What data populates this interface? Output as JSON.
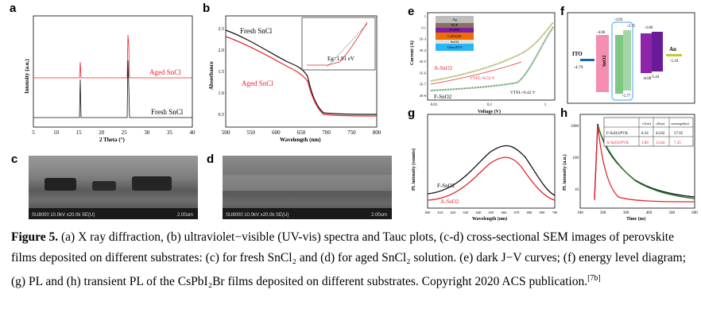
{
  "panels": {
    "a": {
      "letter": "a",
      "ylabel": "Intensity (a.u.)",
      "xlabel": "2 Theta (°)",
      "xticks": [
        "5",
        "10",
        "15",
        "20",
        "25",
        "30",
        "35",
        "40"
      ],
      "label_aged": "Aged SnCl",
      "label_fresh": "Fresh SnCl",
      "sub": "2"
    },
    "b": {
      "letter": "b",
      "ylabel": "Absorbance",
      "xlabel": "Wavelength (nm)",
      "xticks": [
        "500",
        "550",
        "600",
        "650",
        "700",
        "750",
        "800"
      ],
      "yticks": [
        "0.5",
        "1.0",
        "1.5",
        "2.0",
        "2.5"
      ],
      "label_fresh": "Fresh SnCl",
      "label_aged": "Aged SnCl",
      "sub": "2",
      "inset_eg": "Eg=1.91 eV",
      "inset_xticks": [
        "1.6",
        "1.8",
        "2.0",
        "2.2",
        "2.4",
        "2.6"
      ]
    },
    "c": {
      "letter": "c",
      "sem_text": "SU8000 10.0kV x20.0k SE(U)",
      "sem_scale": "2.00um"
    },
    "d": {
      "letter": "d",
      "sem_text": "SU8000 10.0kV x20.0k SE(U)",
      "sem_scale": "2.00um"
    },
    "e": {
      "letter": "e",
      "ylabel": "Current (A)",
      "xlabel": "Voltage (V)",
      "xticks": [
        "0.01",
        "0.1",
        "1"
      ],
      "yticks": [
        "1",
        "0.1",
        "1E-3",
        "1E-4",
        "1E-5",
        "1E-6",
        "1E-7",
        "1E-8"
      ],
      "stack": [
        "Ag",
        "BCP",
        "PCBM",
        "CsPbI2Br",
        "SnO2",
        "Glass/ITO"
      ],
      "label_a": "A-SnO2",
      "label_f": "F-SnO2",
      "vtfl_a": "VTFL=0.53 V",
      "vtfl_f": "VTFL=0.42 V"
    },
    "f": {
      "letter": "f",
      "ito": "ITO",
      "ito_val": "-4.70",
      "sno2": "SnO2",
      "fsno2": "F-SnO2",
      "asno2": "A-SnO2",
      "cs": "CsPbI2Br",
      "spiro": "Spiro-OMeTAD",
      "au": "Au",
      "vals": [
        "-4.06",
        "-3.93",
        "-3.75",
        "-3.86",
        "-5.10",
        "-5.44",
        "-5.77",
        "-8.00"
      ]
    },
    "g": {
      "letter": "g",
      "ylabel": "PL intensity (counts)",
      "xlabel": "Wavelength (nm)",
      "xticks": [
        "600",
        "610",
        "620",
        "630",
        "640",
        "650",
        "660",
        "670",
        "680",
        "690",
        "700"
      ],
      "label_f": "F-SnO2",
      "label_a": "A-SnO2"
    },
    "h": {
      "letter": "h",
      "ylabel": "PL intensity (a.u.)",
      "xlabel": "Time (ns)",
      "xticks": [
        "100",
        "200",
        "300",
        "400",
        "500",
        "600"
      ],
      "yticks": [
        "1000",
        "100",
        "10"
      ],
      "table": {
        "headers": [
          "",
          "τ1(ns)",
          "τ2(ns)",
          "τaverage(ns)"
        ],
        "rows": [
          [
            "F-SnO2/PVK",
            "8.34",
            "43.82",
            "27.05"
          ],
          [
            "A-SnO2/PVK",
            "3.89",
            "13.84",
            "7.35"
          ]
        ]
      }
    }
  },
  "caption": {
    "fig": "Figure 5.",
    "text": " (a) X ray diffraction, (b) ultraviolet−visible (UV-vis) spectra and Tauc plots, (c-d) cross-sectional SEM images of perovskite films deposited on different substrates: (c) for fresh SnCl₂ and (d) for aged SnCl₂ solution. (e) dark J−V curves; (f) energy level diagram; (g) PL and (h) transient PL of the CsPbI₂Br films deposited on different substrates. Copyright 2020 ACS publication.",
    "ref": "[7b]"
  },
  "colors": {
    "red": "#e8262a",
    "black": "#111111",
    "green": "#2e7d32",
    "olive": "#8a9a2a"
  }
}
